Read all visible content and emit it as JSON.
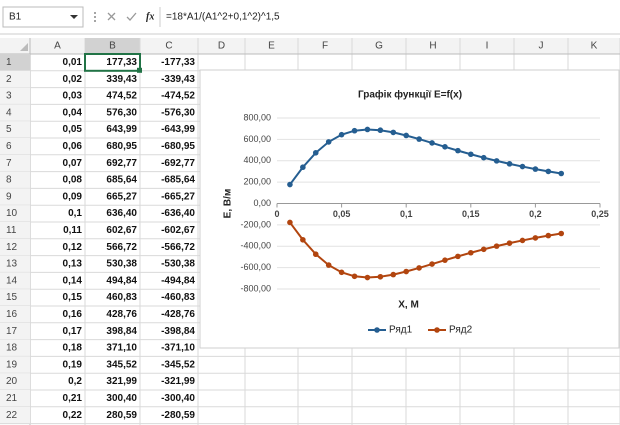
{
  "formula_bar": {
    "name_box": "B1",
    "function_button": "fx",
    "formula": "=18*A1/(A1^2+0,1^2)^1,5"
  },
  "sheet": {
    "columns": [
      "A",
      "B",
      "C",
      "D",
      "E",
      "F",
      "G",
      "H",
      "I",
      "J",
      "K"
    ],
    "rows": [
      {
        "number": "1",
        "cells": [
          "0,01",
          "177,33",
          "-177,33"
        ]
      },
      {
        "number": "2",
        "cells": [
          "0,02",
          "339,43",
          "-339,43"
        ]
      },
      {
        "number": "3",
        "cells": [
          "0,03",
          "474,52",
          "-474,52"
        ]
      },
      {
        "number": "4",
        "cells": [
          "0,04",
          "576,30",
          "-576,30"
        ]
      },
      {
        "number": "5",
        "cells": [
          "0,05",
          "643,99",
          "-643,99"
        ]
      },
      {
        "number": "6",
        "cells": [
          "0,06",
          "680,95",
          "-680,95"
        ]
      },
      {
        "number": "7",
        "cells": [
          "0,07",
          "692,77",
          "-692,77"
        ]
      },
      {
        "number": "8",
        "cells": [
          "0,08",
          "685,64",
          "-685,64"
        ]
      },
      {
        "number": "9",
        "cells": [
          "0,09",
          "665,27",
          "-665,27"
        ]
      },
      {
        "number": "10",
        "cells": [
          "0,1",
          "636,40",
          "-636,40"
        ]
      },
      {
        "number": "11",
        "cells": [
          "0,11",
          "602,67",
          "-602,67"
        ]
      },
      {
        "number": "12",
        "cells": [
          "0,12",
          "566,72",
          "-566,72"
        ]
      },
      {
        "number": "13",
        "cells": [
          "0,13",
          "530,38",
          "-530,38"
        ]
      },
      {
        "number": "14",
        "cells": [
          "0,14",
          "494,84",
          "-494,84"
        ]
      },
      {
        "number": "15",
        "cells": [
          "0,15",
          "460,83",
          "-460,83"
        ]
      },
      {
        "number": "16",
        "cells": [
          "0,16",
          "428,76",
          "-428,76"
        ]
      },
      {
        "number": "17",
        "cells": [
          "0,17",
          "398,84",
          "-398,84"
        ]
      },
      {
        "number": "18",
        "cells": [
          "0,18",
          "371,10",
          "-371,10"
        ]
      },
      {
        "number": "19",
        "cells": [
          "0,19",
          "345,52",
          "-345,52"
        ]
      },
      {
        "number": "20",
        "cells": [
          "0,2",
          "321,99",
          "-321,99"
        ]
      },
      {
        "number": "21",
        "cells": [
          "0,21",
          "300,40",
          "-300,40"
        ]
      },
      {
        "number": "22",
        "cells": [
          "0,22",
          "280,59",
          "-280,59"
        ]
      }
    ]
  },
  "chart_data": {
    "type": "line",
    "title": "Графік функції E=f(x)",
    "x_label": "Х, М",
    "y_label": "E, B/м",
    "x": [
      0.01,
      0.02,
      0.03,
      0.04,
      0.05,
      0.06,
      0.07,
      0.08,
      0.09,
      0.1,
      0.11,
      0.12,
      0.13,
      0.14,
      0.15,
      0.16,
      0.17,
      0.18,
      0.19,
      0.2,
      0.21,
      0.22
    ],
    "series": [
      {
        "name": "Ряд1",
        "color": "#255e91",
        "values": [
          177.33,
          339.43,
          474.52,
          576.3,
          643.99,
          680.95,
          692.77,
          685.64,
          665.27,
          636.4,
          602.67,
          566.72,
          530.38,
          494.84,
          460.83,
          428.76,
          398.84,
          371.1,
          345.52,
          321.99,
          300.4,
          280.59
        ]
      },
      {
        "name": "Ряд2",
        "color": "#b2450f",
        "values": [
          -177.33,
          -339.43,
          -474.52,
          -576.3,
          -643.99,
          -680.95,
          -692.77,
          -685.64,
          -665.27,
          -636.4,
          -602.67,
          -566.72,
          -530.38,
          -494.84,
          -460.83,
          -428.76,
          -398.84,
          -371.1,
          -345.52,
          -321.99,
          -300.4,
          -280.59
        ]
      }
    ],
    "xlim": [
      0,
      0.25
    ],
    "xticks": [
      0,
      {
        "value": 0.05,
        "label": "0,05"
      },
      {
        "value": 0.1,
        "label": "0,1"
      },
      {
        "value": 0.15,
        "label": "0,15"
      },
      {
        "value": 0.2,
        "label": "0,2"
      },
      {
        "value": 0.25,
        "label": "0,25"
      }
    ],
    "ylim": [
      -800,
      800
    ],
    "yticks": [
      {
        "value": 800,
        "label": "800,00"
      },
      {
        "value": 600,
        "label": "600,00"
      },
      {
        "value": 400,
        "label": "400,00"
      },
      {
        "value": 200,
        "label": "200,00"
      },
      {
        "value": 0,
        "label": "0,00"
      },
      {
        "value": -200,
        "label": "-200,00"
      },
      {
        "value": -400,
        "label": "-400,00"
      },
      {
        "value": -600,
        "label": "-600,00"
      },
      {
        "value": -800,
        "label": "-800,00"
      }
    ],
    "grid": true,
    "legend": "bottom"
  }
}
